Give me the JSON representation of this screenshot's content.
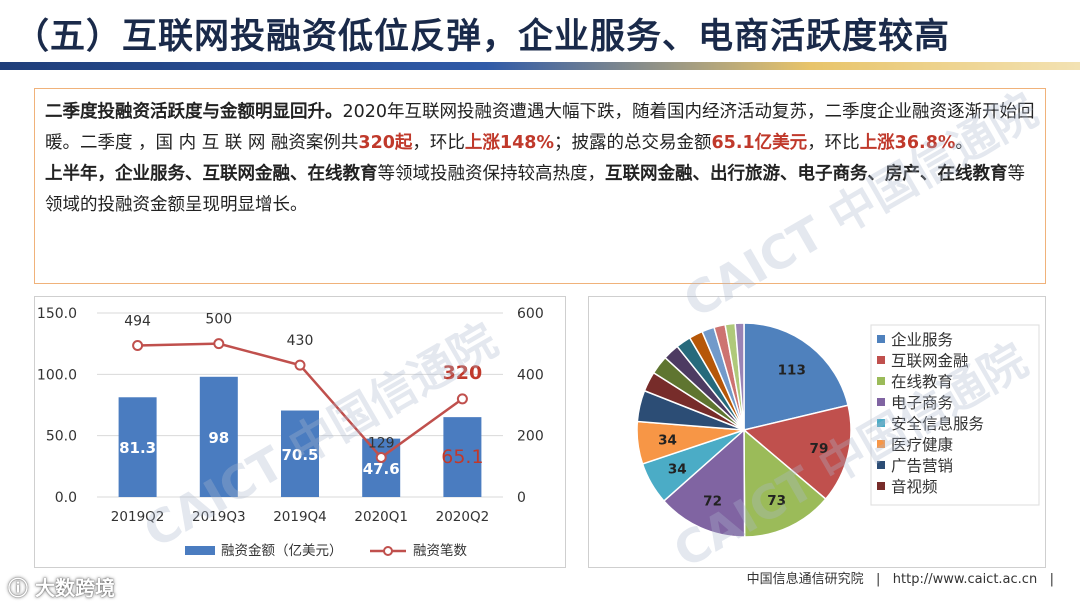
{
  "title": "（五）互联网投融资低位反弹，企业服务、电商活跃度较高",
  "summary": {
    "p1": {
      "lead": "二季度投融资活跃度与金额明显回升。",
      "t1": "2020年互联网投融资遭遇大幅下跌，随着国内经济活动复苏，二季度企业融资逐渐开始回暖。二季度 ，国 内 互 联 网 融资案例共",
      "cases": "320起",
      "t2": "，环比",
      "cases_change": "上涨148%",
      "t3": "；披露的总交易金额",
      "amount": "65.1亿美元",
      "t4": "，环比",
      "amount_change": "上涨36.8%",
      "t5": "。"
    },
    "p2": {
      "lead": "上半年，企业服务、互联网金融、在线教育",
      "t1": "等领域投融资保持较高热度，",
      "b2": "互联网金融、出行旅游、电子商务、房产、在线教育",
      "t2": "等领域的投融资金额呈现明显增长。"
    }
  },
  "chart_data": [
    {
      "type": "bar+line",
      "categories": [
        "2019Q2",
        "2019Q3",
        "2019Q4",
        "2020Q1",
        "2020Q2"
      ],
      "series": [
        {
          "name": "融资金额（亿美元）",
          "kind": "bar",
          "axis": "left",
          "values": [
            81.3,
            98,
            70.5,
            47.6,
            65.1
          ],
          "labels": [
            "81.3",
            "98",
            "70.5",
            "47.6",
            "65.1"
          ],
          "color": "#4a7cc0"
        },
        {
          "name": "融资笔数",
          "kind": "line",
          "axis": "right",
          "values": [
            494,
            500,
            430,
            129,
            320
          ],
          "labels": [
            "494",
            "500",
            "430",
            "129",
            "320"
          ],
          "color": "#c0504d"
        }
      ],
      "left_axis": {
        "ylim": [
          0,
          150
        ],
        "ticks": [
          "0.0",
          "50.0",
          "100.0",
          "150.0"
        ]
      },
      "right_axis": {
        "ylim": [
          0,
          600
        ],
        "ticks": [
          "0",
          "200",
          "400",
          "600"
        ]
      },
      "grid": true,
      "legend": "bottom"
    },
    {
      "type": "pie",
      "slices": [
        {
          "label": "企业服务",
          "value": 113,
          "color": "#4f81bd",
          "show_value": true
        },
        {
          "label": "互联网金融",
          "value": 79,
          "color": "#c0504d",
          "show_value": true
        },
        {
          "label": "在线教育",
          "value": 73,
          "color": "#9bbb59",
          "show_value": true
        },
        {
          "label": "电子商务",
          "value": 72,
          "color": "#8064a2",
          "show_value": true
        },
        {
          "label": "安全信息服务",
          "value": 34,
          "color": "#4bacc6",
          "show_value": true
        },
        {
          "label": "医疗健康",
          "value": 34,
          "color": "#f79646",
          "show_value": true
        },
        {
          "label": "广告营销",
          "value": 25,
          "color": "#2c4d75",
          "show_value": false
        },
        {
          "label": "音视频",
          "value": 16,
          "color": "#772c2a",
          "show_value": false
        },
        {
          "label": "",
          "value": 15,
          "color": "#5f7530",
          "show_value": false
        },
        {
          "label": "",
          "value": 13,
          "color": "#4d3b62",
          "show_value": false
        },
        {
          "label": "",
          "value": 12,
          "color": "#276a7c",
          "show_value": false
        },
        {
          "label": "",
          "value": 11,
          "color": "#b65708",
          "show_value": false
        },
        {
          "label": "",
          "value": 10,
          "color": "#729aca",
          "show_value": false
        },
        {
          "label": "",
          "value": 9,
          "color": "#cd7371",
          "show_value": false
        },
        {
          "label": "",
          "value": 8,
          "color": "#afc97a",
          "show_value": false
        },
        {
          "label": "",
          "value": 7,
          "color": "#9983b5",
          "show_value": false
        }
      ],
      "legend": "right"
    }
  ],
  "watermark": "CAICT 中国信通院",
  "footer": {
    "org": "中国信息通信研究院",
    "sep": "|",
    "url": "http://www.caict.ac.cn",
    "logo": "大数跨境"
  }
}
